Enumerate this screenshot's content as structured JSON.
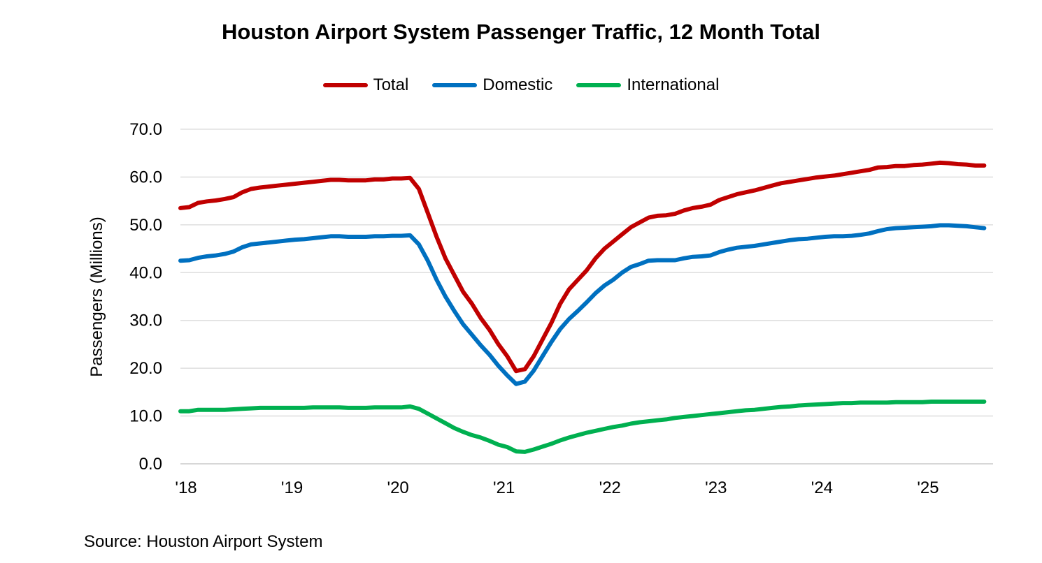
{
  "chart_data": {
    "type": "line",
    "title": "Houston Airport System Passenger Traffic, 12 Month Total",
    "xlabel": "",
    "ylabel": "Passengers (Millions)",
    "ylim": [
      0,
      70
    ],
    "yticks": [
      "0.0",
      "10.0",
      "20.0",
      "30.0",
      "40.0",
      "50.0",
      "60.0",
      "70.0"
    ],
    "xticks": [
      "'18",
      "'19",
      "'20",
      "'21",
      "'22",
      "'23",
      "'24",
      "'25"
    ],
    "x_start_label": "'18",
    "grid": true,
    "legend_position": "top-center",
    "series": [
      {
        "name": "Total",
        "color": "#C00000",
        "points": [
          [
            0,
            53.5
          ],
          [
            1,
            53.7
          ],
          [
            2,
            54.6
          ],
          [
            3,
            54.9
          ],
          [
            4,
            55.1
          ],
          [
            5,
            55.4
          ],
          [
            6,
            55.8
          ],
          [
            7,
            56.8
          ],
          [
            8,
            57.5
          ],
          [
            9,
            57.8
          ],
          [
            10,
            58.0
          ],
          [
            11,
            58.2
          ],
          [
            12,
            58.4
          ],
          [
            13,
            58.6
          ],
          [
            14,
            58.8
          ],
          [
            15,
            59.0
          ],
          [
            16,
            59.2
          ],
          [
            17,
            59.4
          ],
          [
            18,
            59.4
          ],
          [
            19,
            59.3
          ],
          [
            20,
            59.3
          ],
          [
            21,
            59.3
          ],
          [
            22,
            59.5
          ],
          [
            23,
            59.5
          ],
          [
            24,
            59.7
          ],
          [
            25,
            59.7
          ],
          [
            26,
            59.8
          ],
          [
            27,
            57.5
          ],
          [
            28,
            52.5
          ],
          [
            29,
            47.5
          ],
          [
            30,
            43.0
          ],
          [
            31,
            39.5
          ],
          [
            32,
            36.0
          ],
          [
            33,
            33.5
          ],
          [
            34,
            30.5
          ],
          [
            35,
            28.0
          ],
          [
            36,
            25.0
          ],
          [
            37,
            22.5
          ],
          [
            38,
            19.4
          ],
          [
            39,
            19.8
          ],
          [
            40,
            22.5
          ],
          [
            41,
            26.0
          ],
          [
            42,
            29.5
          ],
          [
            43,
            33.5
          ],
          [
            44,
            36.5
          ],
          [
            45,
            38.5
          ],
          [
            46,
            40.5
          ],
          [
            47,
            43.0
          ],
          [
            48,
            45.0
          ],
          [
            49,
            46.5
          ],
          [
            50,
            48.0
          ],
          [
            51,
            49.5
          ],
          [
            52,
            50.5
          ],
          [
            53,
            51.5
          ],
          [
            54,
            51.9
          ],
          [
            55,
            52.0
          ],
          [
            56,
            52.3
          ],
          [
            57,
            53.0
          ],
          [
            58,
            53.5
          ],
          [
            59,
            53.8
          ],
          [
            60,
            54.2
          ],
          [
            61,
            55.2
          ],
          [
            62,
            55.8
          ],
          [
            63,
            56.4
          ],
          [
            64,
            56.8
          ],
          [
            65,
            57.2
          ],
          [
            66,
            57.7
          ],
          [
            67,
            58.2
          ],
          [
            68,
            58.7
          ],
          [
            69,
            59.0
          ],
          [
            70,
            59.3
          ],
          [
            71,
            59.6
          ],
          [
            72,
            59.9
          ],
          [
            73,
            60.1
          ],
          [
            74,
            60.3
          ],
          [
            75,
            60.6
          ],
          [
            76,
            60.9
          ],
          [
            77,
            61.2
          ],
          [
            78,
            61.5
          ],
          [
            79,
            62.0
          ],
          [
            80,
            62.1
          ],
          [
            81,
            62.3
          ],
          [
            82,
            62.3
          ],
          [
            83,
            62.5
          ],
          [
            84,
            62.6
          ],
          [
            85,
            62.8
          ],
          [
            86,
            63.0
          ],
          [
            87,
            62.9
          ],
          [
            88,
            62.7
          ],
          [
            89,
            62.6
          ],
          [
            90,
            62.4
          ],
          [
            91,
            62.4
          ]
        ]
      },
      {
        "name": "Domestic",
        "color": "#0070C0",
        "points": [
          [
            0,
            42.5
          ],
          [
            1,
            42.6
          ],
          [
            2,
            43.1
          ],
          [
            3,
            43.4
          ],
          [
            4,
            43.6
          ],
          [
            5,
            43.9
          ],
          [
            6,
            44.4
          ],
          [
            7,
            45.3
          ],
          [
            8,
            45.9
          ],
          [
            9,
            46.1
          ],
          [
            10,
            46.3
          ],
          [
            11,
            46.5
          ],
          [
            12,
            46.7
          ],
          [
            13,
            46.9
          ],
          [
            14,
            47.0
          ],
          [
            15,
            47.2
          ],
          [
            16,
            47.4
          ],
          [
            17,
            47.6
          ],
          [
            18,
            47.6
          ],
          [
            19,
            47.5
          ],
          [
            20,
            47.5
          ],
          [
            21,
            47.5
          ],
          [
            22,
            47.6
          ],
          [
            23,
            47.6
          ],
          [
            24,
            47.7
          ],
          [
            25,
            47.7
          ],
          [
            26,
            47.8
          ],
          [
            27,
            45.9
          ],
          [
            28,
            42.5
          ],
          [
            29,
            38.5
          ],
          [
            30,
            35.0
          ],
          [
            31,
            32.0
          ],
          [
            32,
            29.2
          ],
          [
            33,
            27.0
          ],
          [
            34,
            24.8
          ],
          [
            35,
            22.8
          ],
          [
            36,
            20.5
          ],
          [
            37,
            18.5
          ],
          [
            38,
            16.7
          ],
          [
            39,
            17.2
          ],
          [
            40,
            19.5
          ],
          [
            41,
            22.5
          ],
          [
            42,
            25.5
          ],
          [
            43,
            28.2
          ],
          [
            44,
            30.3
          ],
          [
            45,
            32.0
          ],
          [
            46,
            33.8
          ],
          [
            47,
            35.7
          ],
          [
            48,
            37.3
          ],
          [
            49,
            38.5
          ],
          [
            50,
            40.0
          ],
          [
            51,
            41.2
          ],
          [
            52,
            41.8
          ],
          [
            53,
            42.5
          ],
          [
            54,
            42.6
          ],
          [
            55,
            42.6
          ],
          [
            56,
            42.6
          ],
          [
            57,
            43.0
          ],
          [
            58,
            43.3
          ],
          [
            59,
            43.4
          ],
          [
            60,
            43.6
          ],
          [
            61,
            44.3
          ],
          [
            62,
            44.8
          ],
          [
            63,
            45.2
          ],
          [
            64,
            45.4
          ],
          [
            65,
            45.6
          ],
          [
            66,
            45.9
          ],
          [
            67,
            46.2
          ],
          [
            68,
            46.5
          ],
          [
            69,
            46.8
          ],
          [
            70,
            47.0
          ],
          [
            71,
            47.1
          ],
          [
            72,
            47.3
          ],
          [
            73,
            47.5
          ],
          [
            74,
            47.6
          ],
          [
            75,
            47.6
          ],
          [
            76,
            47.7
          ],
          [
            77,
            47.9
          ],
          [
            78,
            48.2
          ],
          [
            79,
            48.7
          ],
          [
            80,
            49.1
          ],
          [
            81,
            49.3
          ],
          [
            82,
            49.4
          ],
          [
            83,
            49.5
          ],
          [
            84,
            49.6
          ],
          [
            85,
            49.7
          ],
          [
            86,
            49.9
          ],
          [
            87,
            49.9
          ],
          [
            88,
            49.8
          ],
          [
            89,
            49.7
          ],
          [
            90,
            49.5
          ],
          [
            91,
            49.3
          ]
        ]
      },
      {
        "name": "International",
        "color": "#00B050",
        "points": [
          [
            0,
            11.0
          ],
          [
            1,
            11.0
          ],
          [
            2,
            11.3
          ],
          [
            3,
            11.3
          ],
          [
            4,
            11.3
          ],
          [
            5,
            11.3
          ],
          [
            6,
            11.4
          ],
          [
            7,
            11.5
          ],
          [
            8,
            11.6
          ],
          [
            9,
            11.7
          ],
          [
            10,
            11.7
          ],
          [
            11,
            11.7
          ],
          [
            12,
            11.7
          ],
          [
            13,
            11.7
          ],
          [
            14,
            11.7
          ],
          [
            15,
            11.8
          ],
          [
            16,
            11.8
          ],
          [
            17,
            11.8
          ],
          [
            18,
            11.8
          ],
          [
            19,
            11.7
          ],
          [
            20,
            11.7
          ],
          [
            21,
            11.7
          ],
          [
            22,
            11.8
          ],
          [
            23,
            11.8
          ],
          [
            24,
            11.8
          ],
          [
            25,
            11.8
          ],
          [
            26,
            12.0
          ],
          [
            27,
            11.5
          ],
          [
            28,
            10.5
          ],
          [
            29,
            9.5
          ],
          [
            30,
            8.5
          ],
          [
            31,
            7.5
          ],
          [
            32,
            6.7
          ],
          [
            33,
            6.0
          ],
          [
            34,
            5.5
          ],
          [
            35,
            4.8
          ],
          [
            36,
            4.0
          ],
          [
            37,
            3.5
          ],
          [
            38,
            2.6
          ],
          [
            39,
            2.5
          ],
          [
            40,
            3.0
          ],
          [
            41,
            3.6
          ],
          [
            42,
            4.2
          ],
          [
            43,
            4.9
          ],
          [
            44,
            5.5
          ],
          [
            45,
            6.0
          ],
          [
            46,
            6.5
          ],
          [
            47,
            6.9
          ],
          [
            48,
            7.3
          ],
          [
            49,
            7.7
          ],
          [
            50,
            8.0
          ],
          [
            51,
            8.4
          ],
          [
            52,
            8.7
          ],
          [
            53,
            8.9
          ],
          [
            54,
            9.1
          ],
          [
            55,
            9.3
          ],
          [
            56,
            9.6
          ],
          [
            57,
            9.8
          ],
          [
            58,
            10.0
          ],
          [
            59,
            10.2
          ],
          [
            60,
            10.4
          ],
          [
            61,
            10.6
          ],
          [
            62,
            10.8
          ],
          [
            63,
            11.0
          ],
          [
            64,
            11.2
          ],
          [
            65,
            11.3
          ],
          [
            66,
            11.5
          ],
          [
            67,
            11.7
          ],
          [
            68,
            11.9
          ],
          [
            69,
            12.0
          ],
          [
            70,
            12.2
          ],
          [
            71,
            12.3
          ],
          [
            72,
            12.4
          ],
          [
            73,
            12.5
          ],
          [
            74,
            12.6
          ],
          [
            75,
            12.7
          ],
          [
            76,
            12.7
          ],
          [
            77,
            12.8
          ],
          [
            78,
            12.8
          ],
          [
            79,
            12.8
          ],
          [
            80,
            12.8
          ],
          [
            81,
            12.9
          ],
          [
            82,
            12.9
          ],
          [
            83,
            12.9
          ],
          [
            84,
            12.9
          ],
          [
            85,
            13.0
          ],
          [
            86,
            13.0
          ],
          [
            87,
            13.0
          ],
          [
            88,
            13.0
          ],
          [
            89,
            13.0
          ],
          [
            90,
            13.0
          ],
          [
            91,
            13.0
          ]
        ]
      }
    ]
  },
  "source": "Source: Houston Airport System"
}
